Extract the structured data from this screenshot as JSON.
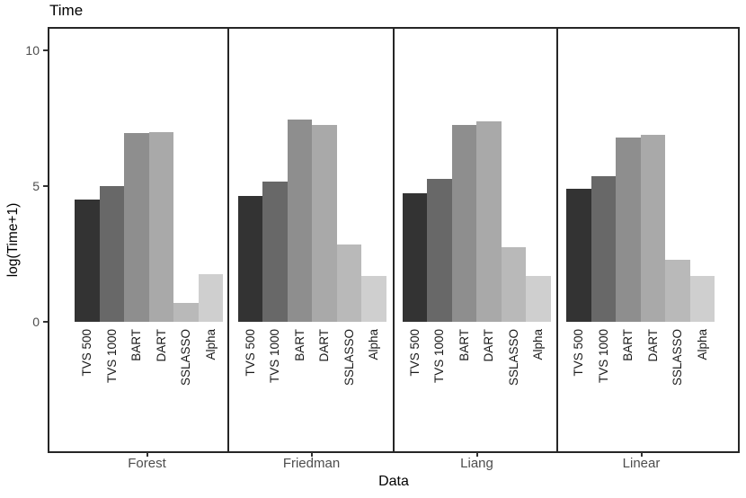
{
  "title": "Time",
  "y_axis": {
    "label": "log(Time+1)",
    "ticks": [
      {
        "label": "10",
        "value": 10
      },
      {
        "label": "5",
        "value": 5
      },
      {
        "label": "0",
        "value": 0
      }
    ]
  },
  "x_axis": {
    "label": "Data",
    "facet_labels": [
      "Forest",
      "Friedman",
      "Liang",
      "Linear"
    ]
  },
  "chart_data": {
    "type": "bar",
    "title": "Time",
    "xlabel": "Data",
    "ylabel": "log(Time+1)",
    "ylim": [
      0,
      10.5
    ],
    "grid": false,
    "legend": "none",
    "facets": [
      "Forest",
      "Friedman",
      "Liang",
      "Linear"
    ],
    "categories": [
      "TVS 500",
      "TVS 1000",
      "BART",
      "DART",
      "SSLASSO",
      "Alpha"
    ],
    "series": [
      {
        "name": "Forest",
        "values": [
          4.5,
          5.0,
          6.95,
          7.0,
          0.7,
          1.75
        ]
      },
      {
        "name": "Friedman",
        "values": [
          4.65,
          5.15,
          7.45,
          7.25,
          2.85,
          1.7
        ]
      },
      {
        "name": "Liang",
        "values": [
          4.75,
          5.25,
          7.25,
          7.4,
          2.75,
          1.7
        ]
      },
      {
        "name": "Linear",
        "values": [
          4.9,
          5.35,
          6.8,
          6.9,
          2.3,
          1.7
        ]
      }
    ],
    "bar_colors": [
      "#333333",
      "#686868",
      "#8e8e8e",
      "#a9a9a9",
      "#b9b9b9",
      "#cfcfcf"
    ],
    "colors": {
      "panel_border": "#262626",
      "tick_label": "#4d4d4d",
      "bar_label": "#1a1a1a",
      "axis_title": "#000000"
    }
  }
}
